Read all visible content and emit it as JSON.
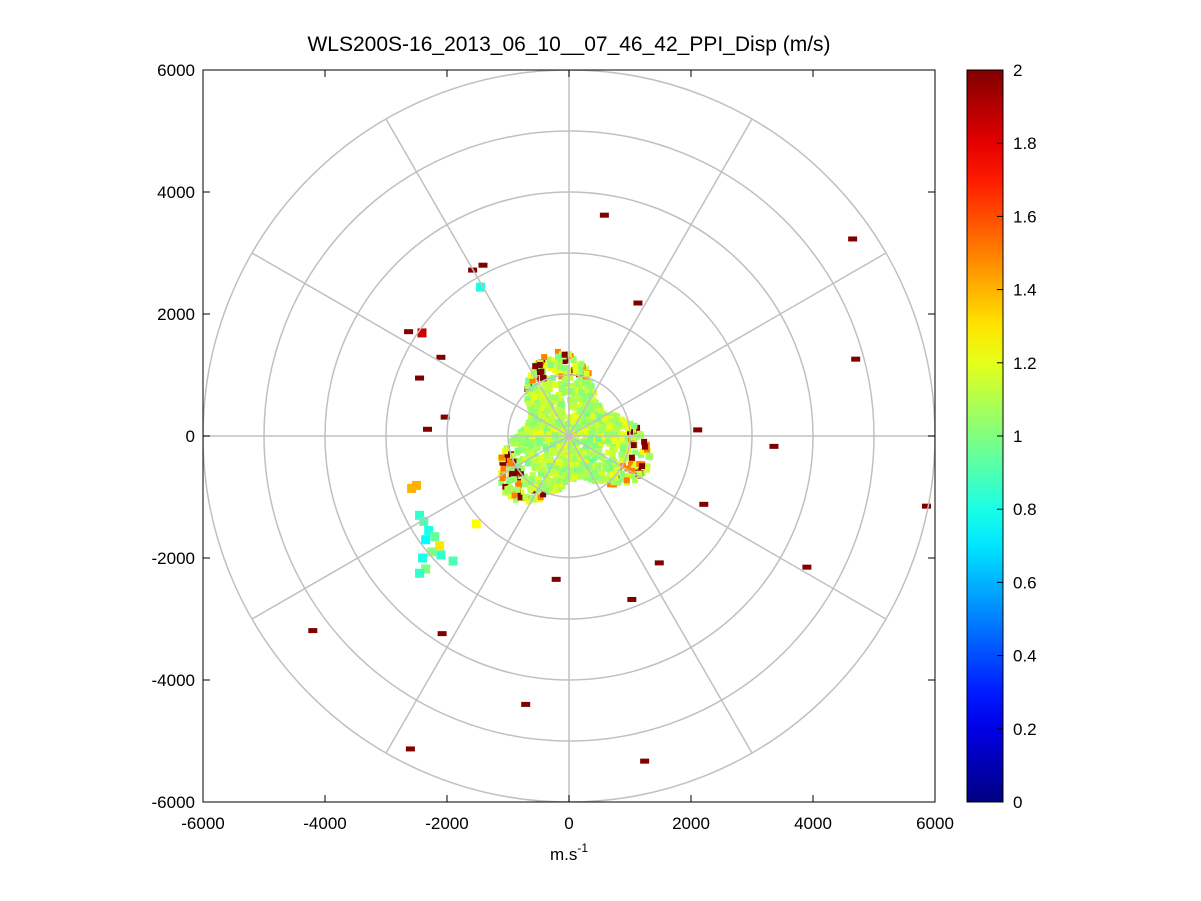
{
  "chart_data": {
    "type": "heatmap",
    "title": "WLS200S-16_2013_06_10__07_46_42_PPI_Disp (m/s)",
    "xlabel": "m.s",
    "xlabel_superscript": "-1",
    "ylabel": "",
    "xlim": [
      -6000,
      6000
    ],
    "ylim": [
      -6000,
      6000
    ],
    "x_ticks": [
      -6000,
      -4000,
      -2000,
      0,
      2000,
      4000,
      6000
    ],
    "y_ticks": [
      6000,
      4000,
      2000,
      0,
      -2000,
      -4000,
      -6000
    ],
    "polar_grid": {
      "range_rings": [
        1000,
        2000,
        3000,
        4000,
        5000,
        6000
      ],
      "spoke_angles_deg": [
        0,
        30,
        60,
        90,
        120,
        150,
        180,
        210,
        240,
        270,
        300,
        330
      ]
    },
    "colorbar": {
      "limits": [
        0,
        2
      ],
      "ticks": [
        0,
        0.2,
        0.4,
        0.6,
        0.8,
        1,
        1.2,
        1.4,
        1.6,
        1.8,
        2
      ],
      "colormap": "jet"
    },
    "core_region": {
      "description_range_m": 1400,
      "typical_value": 1.1
    },
    "points": [
      {
        "x": 580,
        "y": 3620,
        "v": 2
      },
      {
        "x": 4650,
        "y": 3230,
        "v": 2
      },
      {
        "x": -1580,
        "y": 2720,
        "v": 2
      },
      {
        "x": -1410,
        "y": 2800,
        "v": 2
      },
      {
        "x": -1450,
        "y": 2440,
        "v": 0.8
      },
      {
        "x": 1130,
        "y": 2180,
        "v": 2
      },
      {
        "x": -2630,
        "y": 1710,
        "v": 2
      },
      {
        "x": -2410,
        "y": 1690,
        "v": 1.85
      },
      {
        "x": 4700,
        "y": 1260,
        "v": 2
      },
      {
        "x": -2100,
        "y": 1290,
        "v": 2
      },
      {
        "x": -2450,
        "y": 950,
        "v": 2
      },
      {
        "x": -2030,
        "y": 310,
        "v": 2
      },
      {
        "x": -2320,
        "y": 110,
        "v": 2
      },
      {
        "x": 2110,
        "y": 100,
        "v": 2
      },
      {
        "x": 3360,
        "y": -170,
        "v": 2
      },
      {
        "x": 2210,
        "y": -1120,
        "v": 2
      },
      {
        "x": 5860,
        "y": -1150,
        "v": 2
      },
      {
        "x": 1480,
        "y": -2080,
        "v": 2
      },
      {
        "x": 3900,
        "y": -2150,
        "v": 2
      },
      {
        "x": 1030,
        "y": -2680,
        "v": 2
      },
      {
        "x": -210,
        "y": -2350,
        "v": 2
      },
      {
        "x": -4200,
        "y": -3190,
        "v": 2
      },
      {
        "x": -2080,
        "y": -3240,
        "v": 2
      },
      {
        "x": -710,
        "y": -4400,
        "v": 2
      },
      {
        "x": -2600,
        "y": -5130,
        "v": 2
      },
      {
        "x": 1240,
        "y": -5330,
        "v": 2
      },
      {
        "x": -2500,
        "y": -810,
        "v": 1.4
      },
      {
        "x": -2580,
        "y": -860,
        "v": 1.4
      },
      {
        "x": -2450,
        "y": -1300,
        "v": 0.85
      },
      {
        "x": -2380,
        "y": -1400,
        "v": 0.9
      },
      {
        "x": -2300,
        "y": -1550,
        "v": 0.8
      },
      {
        "x": -2200,
        "y": -1650,
        "v": 0.95
      },
      {
        "x": -2350,
        "y": -1700,
        "v": 0.75
      },
      {
        "x": -2120,
        "y": -1800,
        "v": 1.3
      },
      {
        "x": -2250,
        "y": -1900,
        "v": 1.0
      },
      {
        "x": -2400,
        "y": -2000,
        "v": 0.8
      },
      {
        "x": -2100,
        "y": -1950,
        "v": 0.85
      },
      {
        "x": -1900,
        "y": -2050,
        "v": 0.9
      },
      {
        "x": -2350,
        "y": -2180,
        "v": 1.0
      },
      {
        "x": -2450,
        "y": -2250,
        "v": 0.85
      },
      {
        "x": -1520,
        "y": -1440,
        "v": 1.25
      }
    ]
  }
}
